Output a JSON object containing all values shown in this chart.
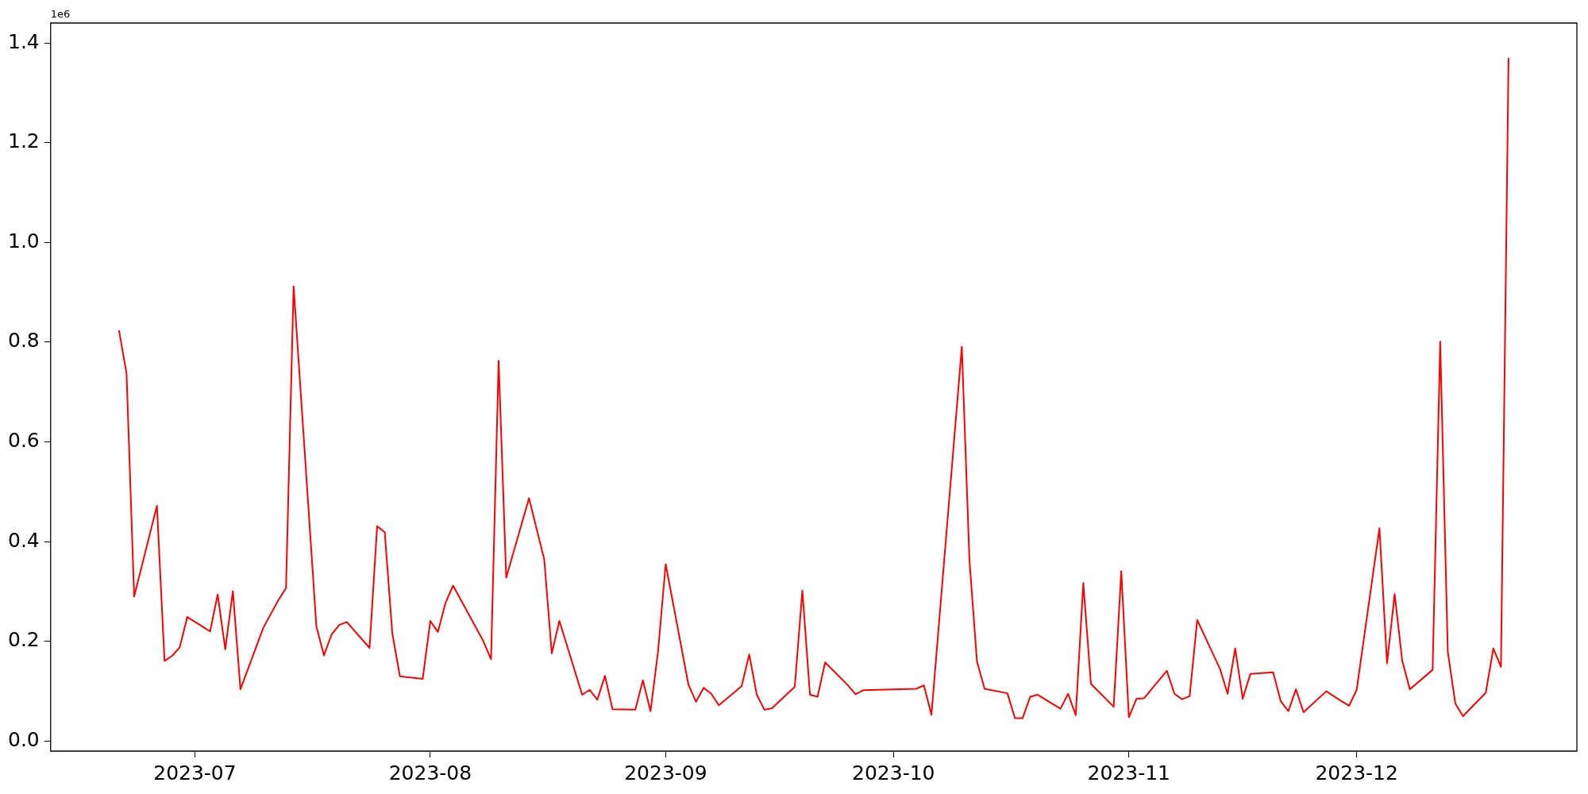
{
  "chart_data": {
    "type": "line",
    "x": [
      "2023-06-21",
      "2023-06-22",
      "2023-06-23",
      "2023-06-26",
      "2023-06-27",
      "2023-06-28",
      "2023-06-29",
      "2023-06-30",
      "2023-07-03",
      "2023-07-04",
      "2023-07-05",
      "2023-07-06",
      "2023-07-07",
      "2023-07-10",
      "2023-07-12",
      "2023-07-13",
      "2023-07-14",
      "2023-07-17",
      "2023-07-18",
      "2023-07-19",
      "2023-07-20",
      "2023-07-21",
      "2023-07-24",
      "2023-07-25",
      "2023-07-26",
      "2023-07-27",
      "2023-07-28",
      "2023-07-31",
      "2023-08-01",
      "2023-08-02",
      "2023-08-03",
      "2023-08-04",
      "2023-08-08",
      "2023-08-09",
      "2023-08-10",
      "2023-08-11",
      "2023-08-14",
      "2023-08-16",
      "2023-08-17",
      "2023-08-18",
      "2023-08-21",
      "2023-08-22",
      "2023-08-23",
      "2023-08-24",
      "2023-08-25",
      "2023-08-28",
      "2023-08-29",
      "2023-08-30",
      "2023-08-31",
      "2023-09-01",
      "2023-09-04",
      "2023-09-05",
      "2023-09-06",
      "2023-09-07",
      "2023-09-08",
      "2023-09-11",
      "2023-09-12",
      "2023-09-13",
      "2023-09-14",
      "2023-09-15",
      "2023-09-18",
      "2023-09-19",
      "2023-09-20",
      "2023-09-21",
      "2023-09-22",
      "2023-09-25",
      "2023-09-26",
      "2023-09-27",
      "2023-10-04",
      "2023-10-05",
      "2023-10-06",
      "2023-10-10",
      "2023-10-11",
      "2023-10-12",
      "2023-10-13",
      "2023-10-16",
      "2023-10-17",
      "2023-10-18",
      "2023-10-19",
      "2023-10-20",
      "2023-10-23",
      "2023-10-24",
      "2023-10-25",
      "2023-10-26",
      "2023-10-27",
      "2023-10-30",
      "2023-10-31",
      "2023-11-01",
      "2023-11-02",
      "2023-11-03",
      "2023-11-06",
      "2023-11-07",
      "2023-11-08",
      "2023-11-09",
      "2023-11-10",
      "2023-11-13",
      "2023-11-14",
      "2023-11-15",
      "2023-11-16",
      "2023-11-17",
      "2023-11-20",
      "2023-11-21",
      "2023-11-22",
      "2023-11-23",
      "2023-11-24",
      "2023-11-27",
      "2023-11-28",
      "2023-11-29",
      "2023-11-30",
      "2023-12-01",
      "2023-12-04",
      "2023-12-05",
      "2023-12-06",
      "2023-12-07",
      "2023-12-08",
      "2023-12-11",
      "2023-12-12",
      "2023-12-13",
      "2023-12-14",
      "2023-12-15",
      "2023-12-18",
      "2023-12-19",
      "2023-12-20",
      "2023-12-21"
    ],
    "series": [
      {
        "color": "#ff0000",
        "values": [
          0.824,
          0.737,
          0.29,
          0.472,
          0.161,
          0.171,
          0.188,
          0.249,
          0.22,
          0.294,
          0.184,
          0.301,
          0.104,
          0.227,
          0.283,
          0.307,
          0.912,
          0.23,
          0.172,
          0.214,
          0.233,
          0.239,
          0.187,
          0.431,
          0.419,
          0.216,
          0.13,
          0.125,
          0.241,
          0.219,
          0.277,
          0.312,
          0.2,
          0.164,
          0.763,
          0.328,
          0.487,
          0.365,
          0.176,
          0.241,
          0.093,
          0.103,
          0.083,
          0.131,
          0.064,
          0.063,
          0.122,
          0.06,
          0.181,
          0.355,
          0.113,
          0.079,
          0.107,
          0.095,
          0.072,
          0.11,
          0.174,
          0.093,
          0.063,
          0.066,
          0.109,
          0.302,
          0.093,
          0.089,
          0.158,
          0.112,
          0.094,
          0.102,
          0.105,
          0.112,
          0.053,
          0.791,
          0.364,
          0.159,
          0.105,
          0.096,
          0.046,
          0.046,
          0.089,
          0.093,
          0.065,
          0.095,
          0.052,
          0.317,
          0.115,
          0.069,
          0.341,
          0.048,
          0.085,
          0.086,
          0.141,
          0.095,
          0.084,
          0.09,
          0.243,
          0.145,
          0.095,
          0.186,
          0.085,
          0.135,
          0.138,
          0.08,
          0.06,
          0.104,
          0.058,
          0.1,
          0.09,
          0.08,
          0.071,
          0.103,
          0.427,
          0.156,
          0.295,
          0.161,
          0.104,
          0.143,
          0.801,
          0.179,
          0.075,
          0.05,
          0.097,
          0.186,
          0.149,
          1.37
        ]
      }
    ],
    "xlim": [
      "2023-06-12",
      "2023-12-30"
    ],
    "xticks": [
      "2023-07",
      "2023-08",
      "2023-09",
      "2023-10",
      "2023-11",
      "2023-12"
    ],
    "ylim": [
      -0.02,
      1.44
    ],
    "yticks": [
      {
        "value": 0,
        "label": "0.0"
      },
      0.2,
      0.4,
      0.6,
      0.8,
      {
        "value": 1,
        "label": "1.0"
      },
      1.2,
      1.4
    ],
    "annotations": [
      "1e6"
    ],
    "marker": "none",
    "line_style": "solid"
  }
}
